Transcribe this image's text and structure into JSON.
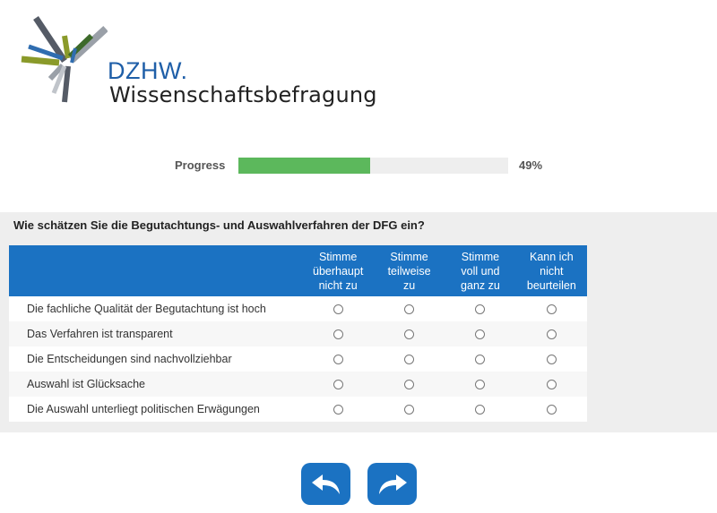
{
  "brand": {
    "name": "DZHW.",
    "subtitle": "Wissenschaftsbefragung"
  },
  "progress": {
    "label": "Progress",
    "percent_text": "49%",
    "fraction": 0.49,
    "fill_color": "#5cb85c"
  },
  "question": {
    "text": "Wie schätzen Sie die Begutachtungs- und Auswahlverfahren der DFG ein?",
    "columns": [
      "Stimme\nüberhaupt\nnicht zu",
      "Stimme\nteilweise\nzu",
      "Stimme\nvoll und\nganz zu",
      "Kann ich\nnicht\nbeurteilen"
    ],
    "rows": [
      "Die fachliche Qualität der Begutachtung ist hoch",
      "Das Verfahren ist transparent",
      "Die Entscheidungen sind nachvollziehbar",
      "Auswahl ist Glücksache",
      "Die Auswahl unterliegt politischen Erwägungen"
    ]
  },
  "nav": {
    "back_icon": "undo-arrow-icon",
    "next_icon": "redo-arrow-icon",
    "accent": "#1b72c2"
  }
}
